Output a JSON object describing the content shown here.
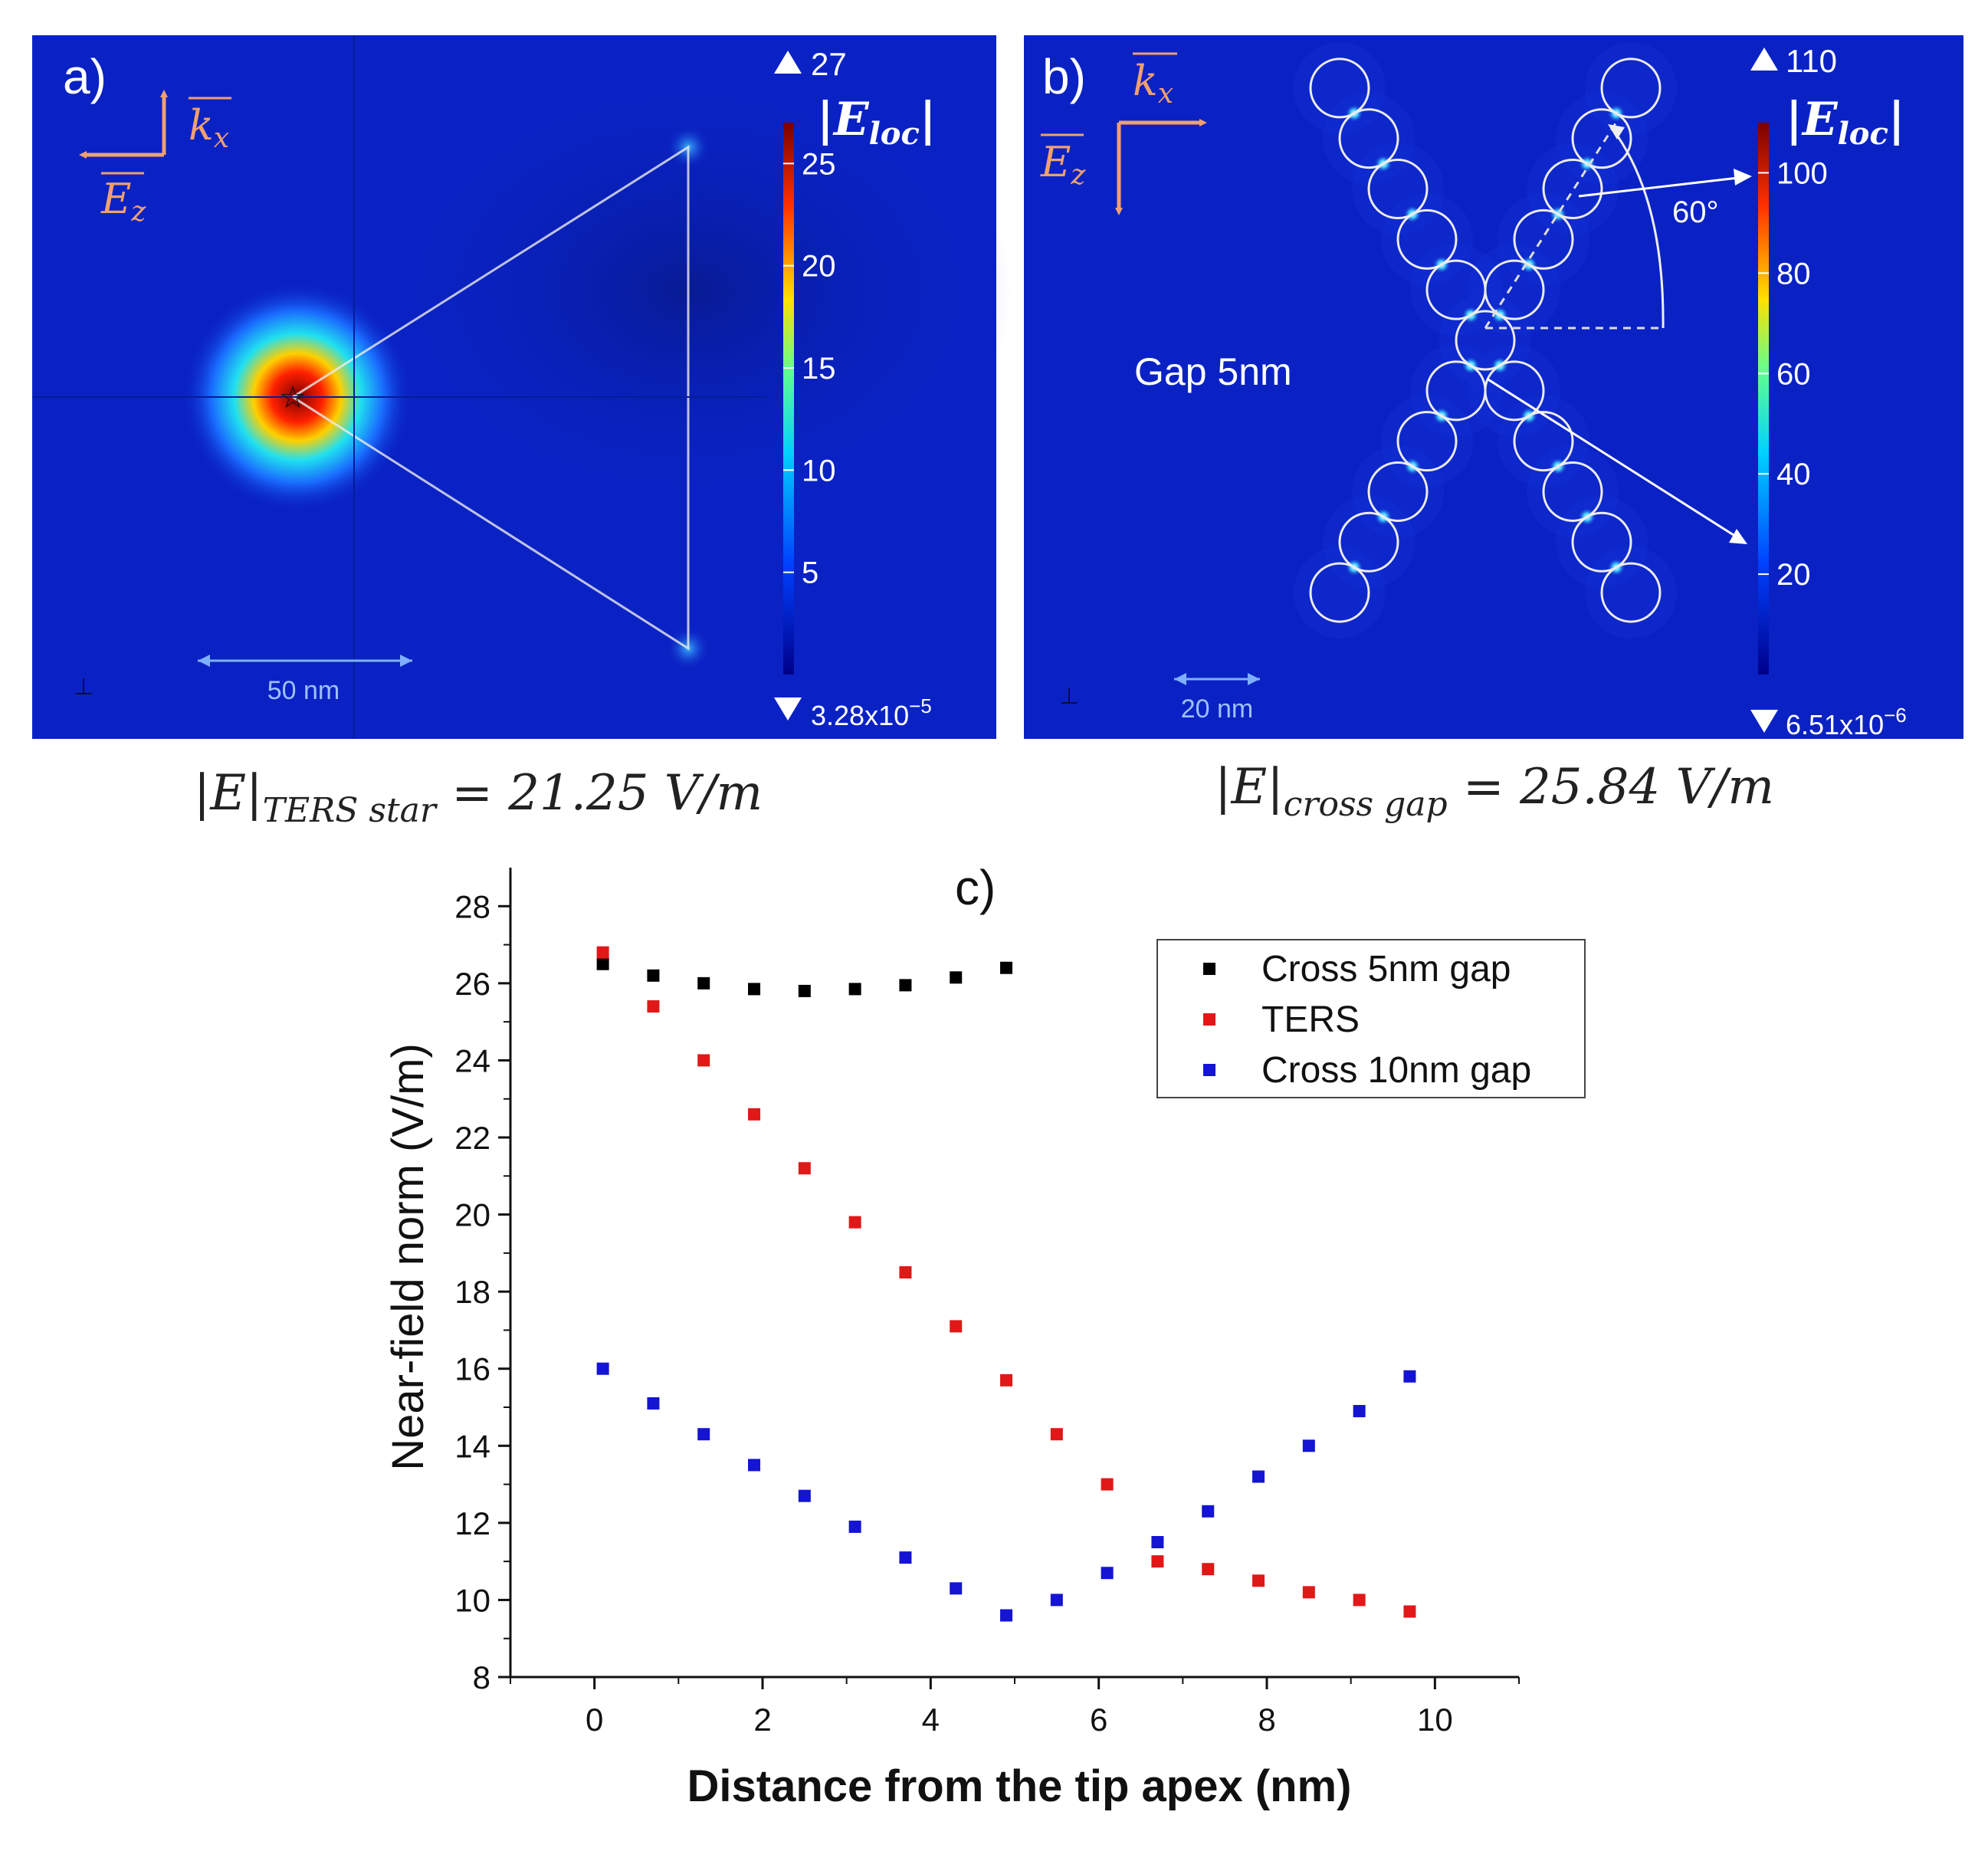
{
  "panel_a": {
    "label": "a)",
    "vectors": {
      "k": "k",
      "k_sub": "x",
      "e": "E",
      "e_sub": "z"
    },
    "colorbar": {
      "max_label": "27",
      "min_label": "3.28x10",
      "min_exp": "−5",
      "title": "|E",
      "title_sub": "loc",
      "title_end": "|",
      "ticks": [
        "25",
        "20",
        "15",
        "10",
        "5"
      ],
      "tick_values": [
        25,
        20,
        15,
        10,
        5
      ],
      "vmin": 0,
      "vmax": 27
    },
    "scale_bar": "50 nm",
    "caption": {
      "main": "|E|",
      "sub": "TERS star",
      "value": " = 21.25 V/m"
    }
  },
  "panel_b": {
    "label": "b)",
    "vectors": {
      "k": "k",
      "k_sub": "x",
      "e": "E",
      "e_sub": "z"
    },
    "gap_label": "Gap 5nm",
    "angle_label": "60°",
    "colorbar": {
      "max_label": "110",
      "min_label": "6.51x10",
      "min_exp": "−6",
      "title": "|E",
      "title_sub": "loc",
      "title_end": "|",
      "ticks": [
        "100",
        "80",
        "60",
        "40",
        "20"
      ],
      "tick_values": [
        100,
        80,
        60,
        40,
        20
      ],
      "vmin": 0,
      "vmax": 110
    },
    "scale_bar": "20 nm",
    "caption": {
      "main": "|E|",
      "sub": "cross gap",
      "value": " = 25.84 V/m"
    }
  },
  "panel_c_label": "c)",
  "colors": {
    "field_bg": "#0a22c4",
    "cross5": "#000000",
    "ters": "#e01818",
    "cross10": "#1414d2",
    "arrow": "#f0a070",
    "outline": "#ececec"
  },
  "chart_data": {
    "type": "scatter",
    "title": "",
    "xlabel": "Distance from the tip apex (nm)",
    "ylabel": "Near-field norm (V/m)",
    "xlim": [
      -1,
      11
    ],
    "ylim": [
      8,
      29
    ],
    "xticks": [
      0,
      2,
      4,
      6,
      8,
      10
    ],
    "yticks": [
      8,
      10,
      12,
      14,
      16,
      18,
      20,
      22,
      24,
      26,
      28
    ],
    "legend_position": "top-right",
    "series": [
      {
        "name": "Cross 5nm gap",
        "color": "#000000",
        "x": [
          0.1,
          0.7,
          1.3,
          1.9,
          2.5,
          3.1,
          3.7,
          4.3,
          4.9
        ],
        "y": [
          26.5,
          26.2,
          26.0,
          25.85,
          25.8,
          25.85,
          25.95,
          26.15,
          26.4
        ]
      },
      {
        "name": "TERS",
        "color": "#e01818",
        "x": [
          0.1,
          0.7,
          1.3,
          1.9,
          2.5,
          3.1,
          3.7,
          4.3,
          4.9,
          5.5,
          6.1,
          6.7,
          7.3,
          7.9,
          8.5,
          9.1,
          9.7
        ],
        "y": [
          26.8,
          25.4,
          24.0,
          22.6,
          21.2,
          19.8,
          18.5,
          17.1,
          15.7,
          14.3,
          13.0,
          11.0,
          10.8,
          10.5,
          10.2,
          10.0,
          9.7
        ]
      },
      {
        "name": "Cross 10nm gap",
        "color": "#1414d2",
        "x": [
          0.1,
          0.7,
          1.3,
          1.9,
          2.5,
          3.1,
          3.7,
          4.3,
          4.9,
          5.5,
          6.1,
          6.7,
          7.3,
          7.9,
          8.5,
          9.1,
          9.7
        ],
        "y": [
          16.0,
          15.1,
          14.3,
          13.5,
          12.7,
          11.9,
          11.1,
          10.3,
          9.6,
          10.0,
          10.7,
          11.5,
          12.3,
          13.2,
          14.0,
          14.9,
          15.8
        ]
      }
    ]
  }
}
